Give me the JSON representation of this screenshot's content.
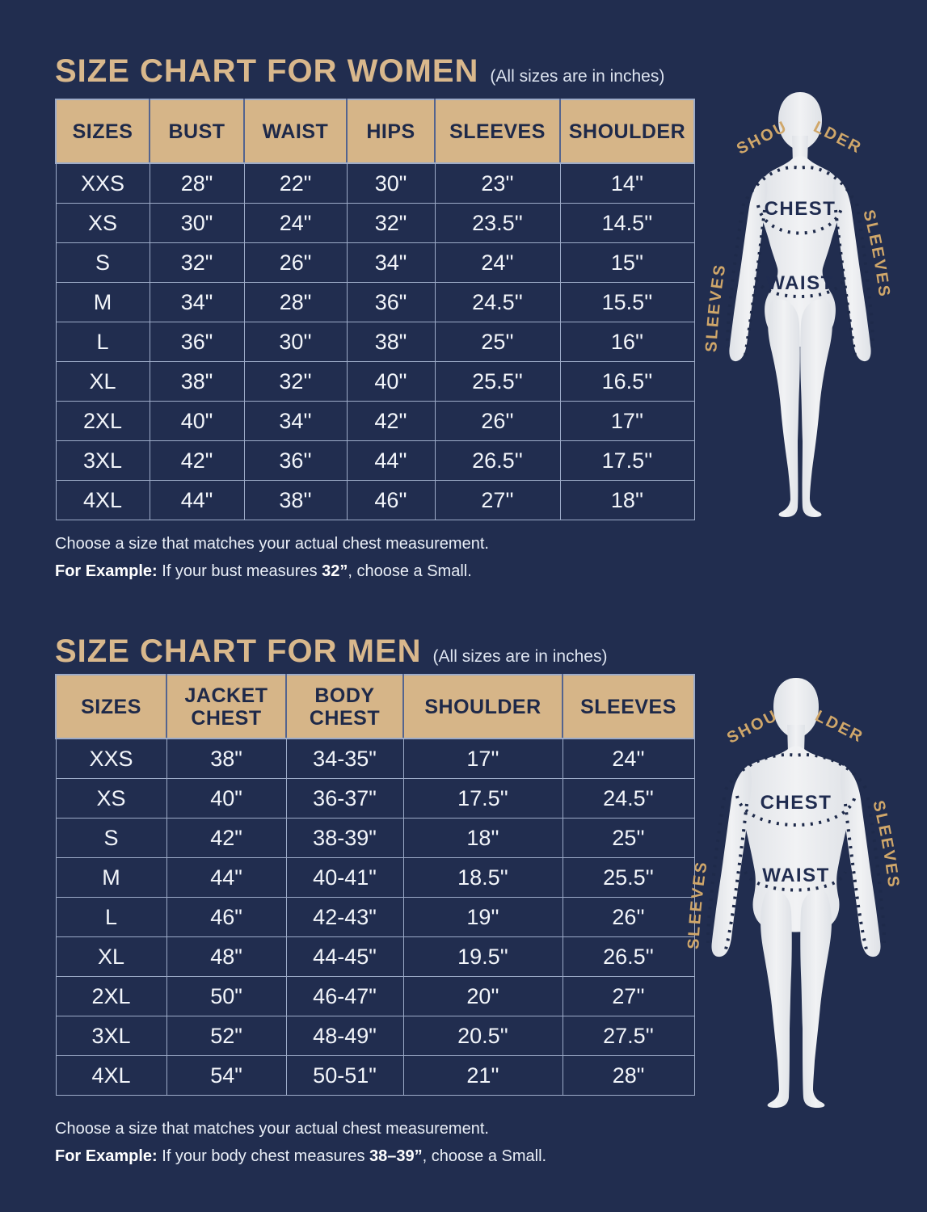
{
  "page": {
    "colors": {
      "background": "#212d4f",
      "tan_accent": "#d6b588",
      "title_tan": "#d9b88c",
      "navy_text": "#1e2949",
      "gold_label": "#d0a76a",
      "table_border": "#9dabc8",
      "white_text": "#f2f5fa"
    }
  },
  "women": {
    "title": "SIZE CHART FOR WOMEN",
    "subtitle": "(All sizes are in inches)",
    "columns": [
      "SIZES",
      "BUST",
      "WAIST",
      "HIPS",
      "SLEEVES",
      "SHOULDER"
    ],
    "rows": [
      [
        "XXS",
        "28\"",
        "22\"",
        "30\"",
        "23''",
        "14''"
      ],
      [
        "XS",
        "30\"",
        "24\"",
        "32\"",
        "23.5''",
        "14.5''"
      ],
      [
        "S",
        "32\"",
        "26\"",
        "34\"",
        "24''",
        "15''"
      ],
      [
        "M",
        "34\"",
        "28\"",
        "36\"",
        "24.5''",
        "15.5''"
      ],
      [
        "L",
        "36\"",
        "30''",
        "38\"",
        "25''",
        "16''"
      ],
      [
        "XL",
        "38\"",
        "32''",
        "40''",
        "25.5''",
        "16.5''"
      ],
      [
        "2XL",
        "40\"",
        "34''",
        "42''",
        "26''",
        "17''"
      ],
      [
        "3XL",
        "42\"",
        "36''",
        "44''",
        "26.5''",
        "17.5''"
      ],
      [
        "4XL",
        "44\"",
        "38''",
        "46''",
        "27''",
        "18''"
      ]
    ],
    "note1": "Choose a size that matches your actual chest measurement.",
    "note2_label": "For Example:",
    "note2_text": " If your bust measures ",
    "note2_value": "32”",
    "note2_suffix": ", choose a Small."
  },
  "men": {
    "title": "SIZE CHART FOR MEN",
    "subtitle": "(All sizes are in inches)",
    "columns": [
      "SIZES",
      "JACKET CHEST",
      "BODY CHEST",
      "SHOULDER",
      "SLEEVES"
    ],
    "rows": [
      [
        "XXS",
        "38\"",
        "34-35\"",
        "17''",
        "24''"
      ],
      [
        "XS",
        "40\"",
        "36-37\"",
        "17.5''",
        "24.5''"
      ],
      [
        "S",
        "42\"",
        "38-39\"",
        "18''",
        "25''"
      ],
      [
        "M",
        "44\"",
        "40-41\"",
        "18.5''",
        "25.5''"
      ],
      [
        "L",
        "46\"",
        "42-43\"",
        "19''",
        "26''"
      ],
      [
        "XL",
        "48\"",
        "44-45\"",
        "19.5''",
        "26.5''"
      ],
      [
        "2XL",
        "50\"",
        "46-47\"",
        "20''",
        "27''"
      ],
      [
        "3XL",
        "52\"",
        "48-49\"",
        "20.5''",
        "27.5''"
      ],
      [
        "4XL",
        "54\"",
        "50-51\"",
        "21''",
        "28\""
      ]
    ],
    "note1": "Choose a size that matches your actual chest measurement.",
    "note2_label": "For Example:",
    "note2_text": " If your body chest measures ",
    "note2_value": "38–39”",
    "note2_suffix": ", choose a Small."
  },
  "figure_labels": {
    "shoulder_left": "SHOU",
    "shoulder_right": "LDER",
    "sleeves": "SLEEVES",
    "chest": "CHEST",
    "waist": "WAIST"
  }
}
